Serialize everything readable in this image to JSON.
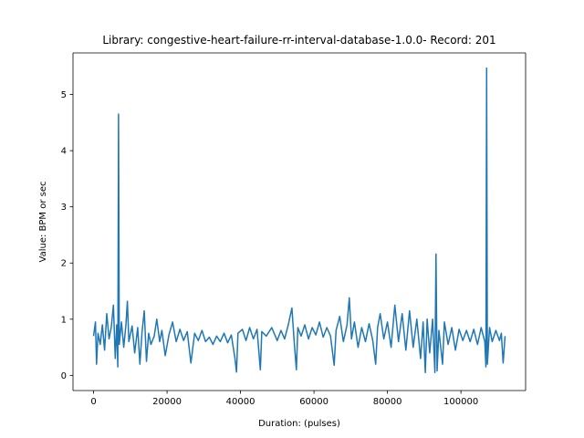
{
  "chart_data": {
    "type": "line",
    "title": "Library: congestive-heart-failure-rr-interval-database-1.0.0- Record: 201",
    "xlabel": "Duration: (pulses)",
    "ylabel": "Value: BPM or sec",
    "xlim": [
      -5600,
      117600
    ],
    "ylim": [
      -0.27,
      5.74
    ],
    "xticks": [
      0,
      20000,
      40000,
      60000,
      80000,
      100000
    ],
    "yticks": [
      0,
      1,
      2,
      3,
      4,
      5
    ],
    "grid": false,
    "color": "#1f77b4",
    "series": [
      {
        "points": [
          [
            0,
            0.7
          ],
          [
            500,
            0.95
          ],
          [
            800,
            0.2
          ],
          [
            1200,
            0.75
          ],
          [
            1800,
            0.55
          ],
          [
            2400,
            0.9
          ],
          [
            3000,
            0.45
          ],
          [
            3600,
            1.1
          ],
          [
            4200,
            0.65
          ],
          [
            4800,
            0.85
          ],
          [
            5400,
            1.25
          ],
          [
            5900,
            0.3
          ],
          [
            6300,
            0.9
          ],
          [
            6600,
            0.15
          ],
          [
            6800,
            4.65
          ],
          [
            7000,
            0.55
          ],
          [
            7600,
            0.95
          ],
          [
            8200,
            0.5
          ],
          [
            8800,
            0.9
          ],
          [
            9200,
            1.32
          ],
          [
            9600,
            0.6
          ],
          [
            10500,
            0.88
          ],
          [
            11200,
            0.4
          ],
          [
            12000,
            0.85
          ],
          [
            12600,
            0.2
          ],
          [
            13200,
            0.78
          ],
          [
            13800,
            1.15
          ],
          [
            14400,
            0.25
          ],
          [
            15000,
            0.75
          ],
          [
            15600,
            0.55
          ],
          [
            16500,
            0.7
          ],
          [
            17200,
            1.0
          ],
          [
            18000,
            0.6
          ],
          [
            18600,
            0.8
          ],
          [
            19500,
            0.35
          ],
          [
            20500,
            0.72
          ],
          [
            21500,
            0.95
          ],
          [
            22500,
            0.6
          ],
          [
            23500,
            0.82
          ],
          [
            24500,
            0.62
          ],
          [
            25500,
            0.78
          ],
          [
            26500,
            0.22
          ],
          [
            27500,
            0.75
          ],
          [
            28500,
            0.62
          ],
          [
            29500,
            0.8
          ],
          [
            30500,
            0.6
          ],
          [
            31500,
            0.68
          ],
          [
            32500,
            0.55
          ],
          [
            33500,
            0.7
          ],
          [
            34500,
            0.6
          ],
          [
            35500,
            0.75
          ],
          [
            36500,
            0.58
          ],
          [
            37500,
            0.72
          ],
          [
            38500,
            0.3
          ],
          [
            38900,
            0.06
          ],
          [
            39300,
            0.75
          ],
          [
            40500,
            0.82
          ],
          [
            41500,
            0.62
          ],
          [
            42500,
            0.85
          ],
          [
            43500,
            0.65
          ],
          [
            44500,
            0.82
          ],
          [
            45400,
            0.1
          ],
          [
            45800,
            0.78
          ],
          [
            47000,
            0.7
          ],
          [
            48500,
            0.85
          ],
          [
            50000,
            0.62
          ],
          [
            51000,
            0.8
          ],
          [
            52000,
            0.65
          ],
          [
            53000,
            0.9
          ],
          [
            54000,
            1.2
          ],
          [
            54600,
            0.6
          ],
          [
            55200,
            0.1
          ],
          [
            55600,
            0.85
          ],
          [
            56500,
            0.7
          ],
          [
            57500,
            0.9
          ],
          [
            58500,
            0.65
          ],
          [
            59500,
            0.85
          ],
          [
            60500,
            0.72
          ],
          [
            61500,
            0.95
          ],
          [
            62500,
            0.68
          ],
          [
            63500,
            0.85
          ],
          [
            64500,
            0.7
          ],
          [
            65500,
            0.18
          ],
          [
            66000,
            0.8
          ],
          [
            67000,
            1.05
          ],
          [
            68000,
            0.6
          ],
          [
            69000,
            0.9
          ],
          [
            69600,
            1.38
          ],
          [
            70200,
            0.65
          ],
          [
            71000,
            0.95
          ],
          [
            72000,
            0.5
          ],
          [
            73000,
            0.85
          ],
          [
            74000,
            0.6
          ],
          [
            75000,
            0.92
          ],
          [
            76000,
            0.62
          ],
          [
            76800,
            0.2
          ],
          [
            77300,
            0.85
          ],
          [
            78000,
            1.1
          ],
          [
            79000,
            0.65
          ],
          [
            80000,
            0.95
          ],
          [
            81000,
            0.5
          ],
          [
            82000,
            1.25
          ],
          [
            83000,
            0.6
          ],
          [
            84000,
            1.1
          ],
          [
            85000,
            0.45
          ],
          [
            86000,
            1.15
          ],
          [
            87000,
            0.5
          ],
          [
            88000,
            1.0
          ],
          [
            89000,
            0.3
          ],
          [
            89700,
            0.95
          ],
          [
            90300,
            0.05
          ],
          [
            90800,
            1.0
          ],
          [
            91500,
            0.4
          ],
          [
            92300,
            1.0
          ],
          [
            92900,
            0.05
          ],
          [
            93200,
            2.16
          ],
          [
            93500,
            0.08
          ],
          [
            94000,
            0.8
          ],
          [
            95000,
            0.2
          ],
          [
            95500,
            0.95
          ],
          [
            96500,
            0.55
          ],
          [
            97500,
            0.85
          ],
          [
            98500,
            0.45
          ],
          [
            99500,
            0.82
          ],
          [
            100500,
            0.62
          ],
          [
            101500,
            0.8
          ],
          [
            102500,
            0.6
          ],
          [
            103500,
            0.82
          ],
          [
            104500,
            0.55
          ],
          [
            105500,
            0.85
          ],
          [
            106500,
            0.6
          ],
          [
            106800,
            0.15
          ],
          [
            107000,
            5.47
          ],
          [
            107200,
            0.2
          ],
          [
            107800,
            0.85
          ],
          [
            108500,
            0.6
          ],
          [
            109500,
            0.8
          ],
          [
            110500,
            0.62
          ],
          [
            111000,
            0.75
          ],
          [
            111500,
            0.22
          ],
          [
            112000,
            0.7
          ]
        ]
      }
    ]
  }
}
